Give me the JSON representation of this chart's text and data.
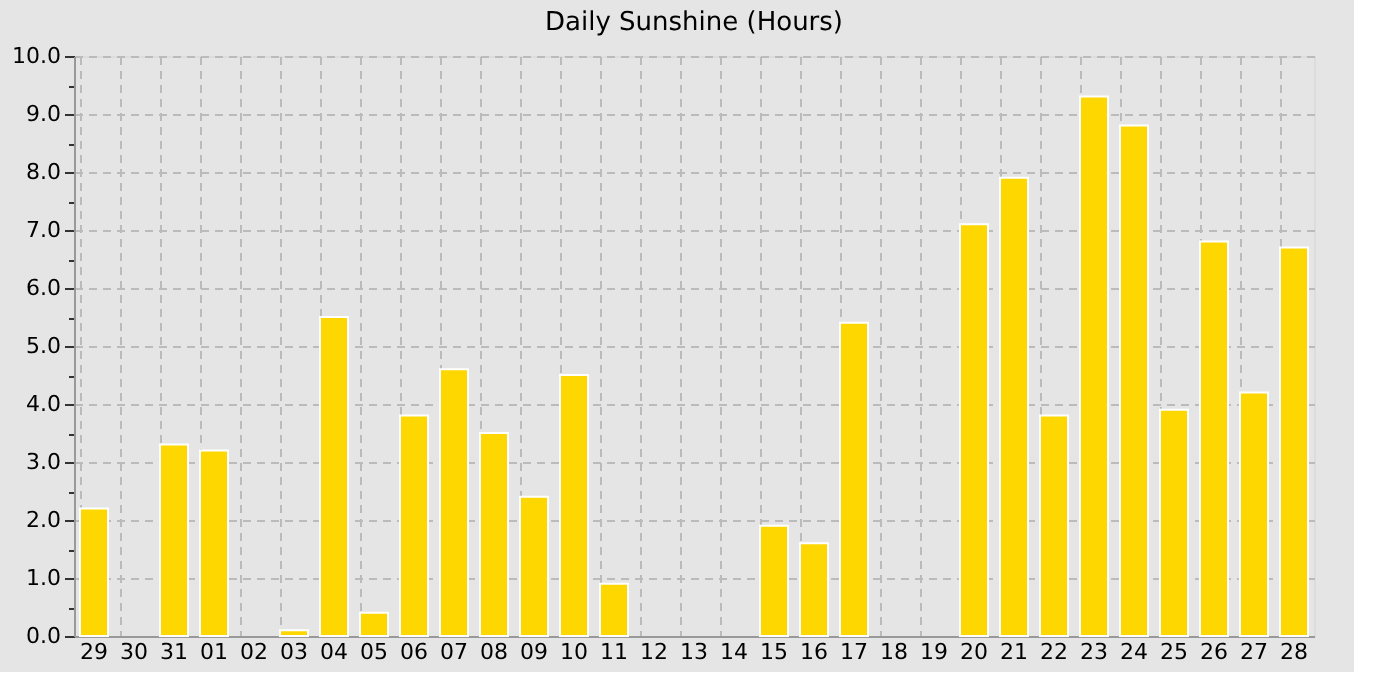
{
  "chart_data": {
    "type": "bar",
    "title": "Daily Sunshine (Hours)",
    "categories": [
      "29",
      "30",
      "31",
      "01",
      "02",
      "03",
      "04",
      "05",
      "06",
      "07",
      "08",
      "09",
      "10",
      "11",
      "12",
      "13",
      "14",
      "15",
      "16",
      "17",
      "18",
      "19",
      "20",
      "21",
      "22",
      "23",
      "24",
      "25",
      "26",
      "27",
      "28"
    ],
    "values": [
      2.2,
      0,
      3.3,
      3.2,
      0,
      0.1,
      5.5,
      0.4,
      3.8,
      4.6,
      3.5,
      2.4,
      4.5,
      0.9,
      0,
      0,
      0,
      1.9,
      1.6,
      5.4,
      0,
      0,
      7.1,
      7.9,
      3.8,
      9.3,
      8.8,
      3.9,
      6.8,
      4.2,
      6.7
    ],
    "color": "#ffd700",
    "ylim": [
      0,
      10
    ],
    "yticks": [
      {
        "value": 0,
        "label": "0.0"
      },
      {
        "value": 0.5,
        "label": null
      },
      {
        "value": 1,
        "label": "1.0"
      },
      {
        "value": 1.5,
        "label": null
      },
      {
        "value": 2,
        "label": "2.0"
      },
      {
        "value": 2.5,
        "label": null
      },
      {
        "value": 3,
        "label": "3.0"
      },
      {
        "value": 3.5,
        "label": null
      },
      {
        "value": 4,
        "label": "4.0"
      },
      {
        "value": 4.5,
        "label": null
      },
      {
        "value": 5,
        "label": "5.0"
      },
      {
        "value": 5.5,
        "label": null
      },
      {
        "value": 6,
        "label": "6.0"
      },
      {
        "value": 6.5,
        "label": null
      },
      {
        "value": 7,
        "label": "7.0"
      },
      {
        "value": 7.5,
        "label": null
      },
      {
        "value": 8,
        "label": "8.0"
      },
      {
        "value": 8.5,
        "label": null
      },
      {
        "value": 9,
        "label": "9.0"
      },
      {
        "value": 9.5,
        "label": null
      },
      {
        "value": 10,
        "label": "10.0"
      }
    ],
    "grid": true
  }
}
